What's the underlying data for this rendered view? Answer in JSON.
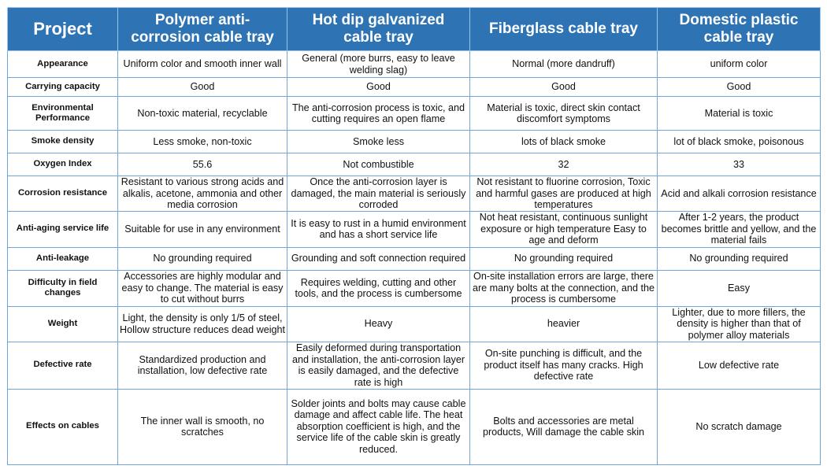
{
  "headers": [
    "Project",
    "Polymer anti-corrosion cable tray",
    "Hot dip galvanized cable tray",
    "Fiberglass cable tray",
    "Domestic plastic cable tray"
  ],
  "rows": [
    {
      "label": "Appearance",
      "cells": [
        "Uniform color and smooth inner wall",
        "General (more burrs, easy to leave welding slag)",
        "Normal (more dandruff)",
        "uniform color"
      ]
    },
    {
      "label": "Carrying capacity",
      "cells": [
        "Good",
        "Good",
        "Good",
        "Good"
      ]
    },
    {
      "label": "Environmental Performance",
      "cells": [
        "Non-toxic material, recyclable",
        "The anti-corrosion process is toxic, and cutting requires an open flame",
        "Material is toxic, direct skin contact discomfort symptoms",
        "Material is toxic"
      ]
    },
    {
      "label": "Smoke density",
      "cells": [
        "Less smoke, non-toxic",
        "Smoke less",
        "lots of black smoke",
        "lot of black smoke, poisonous"
      ]
    },
    {
      "label": "Oxygen Index",
      "cells": [
        "55.6",
        "Not combustible",
        "32",
        "33"
      ]
    },
    {
      "label": "Corrosion resistance",
      "cells": [
        "Resistant to various strong acids and alkalis, acetone, ammonia and other media corrosion",
        "Once the anti-corrosion layer is damaged, the main material is seriously corroded",
        "Not resistant to fluorine corrosion, Toxic and harmful gases are produced at high temperatures",
        "Acid and alkali corrosion resistance"
      ]
    },
    {
      "label": "Anti-aging service life",
      "cells": [
        "Suitable for use in any environment",
        "It is easy to rust in a humid environment and has a short service life",
        "Not heat resistant, continuous sunlight exposure or high temperature Easy to age and deform",
        "After 1-2 years, the product becomes brittle and yellow, and the material fails"
      ]
    },
    {
      "label": "Anti-leakage",
      "cells": [
        "No grounding required",
        "Grounding and soft connection required",
        "No grounding required",
        "No grounding required"
      ]
    },
    {
      "label": "Difficulty in field changes",
      "cells": [
        "Accessories are highly modular and easy to change. The material is easy to cut without burrs",
        "Requires welding, cutting and other tools, and the process is cumbersome",
        "On-site installation errors are large, there are many bolts at the connection, and the process is cumbersome",
        "Easy"
      ]
    },
    {
      "label": "Weight",
      "cells": [
        "Light, the density is only 1/5 of steel, Hollow structure reduces dead weight",
        "Heavy",
        "heavier",
        "Lighter, due to more fillers, the density is higher than that of polymer alloy materials"
      ]
    },
    {
      "label": "Defective rate",
      "cells": [
        "Standardized production and installation, low defective rate",
        "Easily deformed during transportation and installation, the anti-corrosion layer is easily damaged, and the defective rate is high",
        "On-site punching is difficult, and the product itself has many cracks. High defective rate",
        "Low defective rate"
      ]
    },
    {
      "label": "Effects on cables",
      "cells": [
        "The inner wall is smooth, no scratches",
        "Solder joints and bolts may cause cable damage and affect cable life. The heat absorption coefficient is high, and the service life of the cable skin is greatly reduced.",
        "Bolts and accessories are metal products, Will damage the cable skin",
        "No scratch damage"
      ]
    }
  ]
}
